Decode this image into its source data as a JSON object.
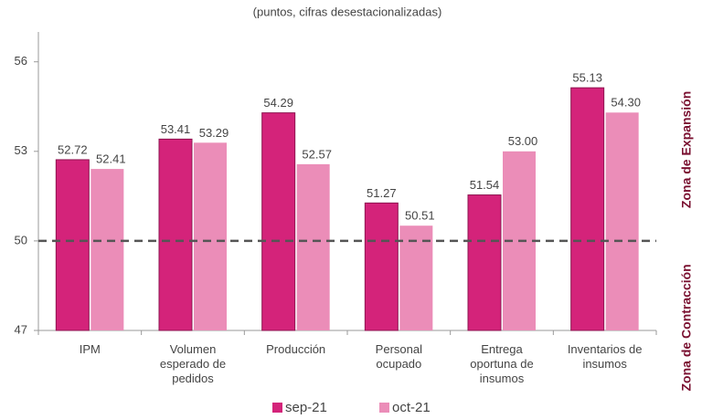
{
  "chart_data": {
    "type": "bar",
    "subtitle": "(puntos, cifras desestacionalizadas)",
    "categories": [
      "IPM",
      "Volumen esperado de pedidos",
      "Producción",
      "Personal ocupado",
      "Entrega oportuna de insumos",
      "Inventarios de insumos"
    ],
    "series": [
      {
        "name": "sep-21",
        "color": "#d4237a",
        "values": [
          52.72,
          53.41,
          54.29,
          51.27,
          51.54,
          55.13
        ],
        "value_labels": [
          "52.72",
          "53.41",
          "54.29",
          "51.27",
          "51.54",
          "55.13"
        ]
      },
      {
        "name": "oct-21",
        "color": "#eb8db8",
        "values": [
          52.41,
          53.29,
          52.57,
          50.51,
          53.0,
          54.3
        ],
        "value_labels": [
          "52.41",
          "53.29",
          "52.57",
          "50.51",
          "53.00",
          "54.30"
        ]
      }
    ],
    "ylim": [
      47,
      57
    ],
    "yticks": [
      47,
      50,
      53,
      56
    ],
    "threshold": 50,
    "zone_labels": [
      "Zona de Contracción",
      "Zona de Expansión"
    ],
    "legend": "bottom"
  }
}
